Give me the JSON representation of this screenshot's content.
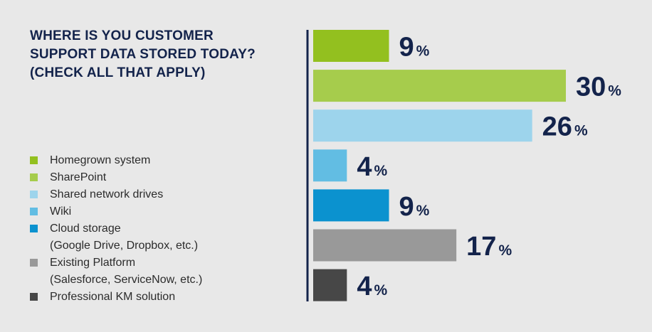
{
  "chart_data": {
    "type": "bar",
    "orientation": "horizontal",
    "title": "WHERE IS YOU CUSTOMER SUPPORT DATA STORED TODAY? (CHECK ALL THAT APPLY)",
    "categories": [
      "Homegrown system",
      "SharePoint",
      "Shared network drives",
      "Wiki",
      "Cloud storage (Google Drive, Dropbox, etc.)",
      "Existing Platform (Salesforce, ServiceNow, etc.)",
      "Professional KM solution"
    ],
    "values": [
      9,
      30,
      26,
      4,
      9,
      17,
      4
    ],
    "value_suffix": "%",
    "colors": [
      "#93c01f",
      "#a6cc4c",
      "#9dd4ec",
      "#62bde3",
      "#0b92cf",
      "#999999",
      "#474747"
    ],
    "xlim": [
      0,
      30
    ],
    "grid": false,
    "legend_placement": "left"
  },
  "legend": [
    {
      "lines": [
        "Homegrown system"
      ],
      "color": "#93c01f"
    },
    {
      "lines": [
        "SharePoint"
      ],
      "color": "#a6cc4c"
    },
    {
      "lines": [
        "Shared network drives"
      ],
      "color": "#9dd4ec"
    },
    {
      "lines": [
        "Wiki"
      ],
      "color": "#62bde3"
    },
    {
      "lines": [
        "Cloud storage",
        "(Google Drive, Dropbox, etc.)"
      ],
      "color": "#0b92cf"
    },
    {
      "lines": [
        "Existing Platform",
        "(Salesforce, ServiceNow, etc.)"
      ],
      "color": "#999999"
    },
    {
      "lines": [
        "Professional KM solution"
      ],
      "color": "#474747"
    }
  ],
  "title_lines": [
    "WHERE IS YOU CUSTOMER",
    "SUPPORT DATA STORED TODAY?",
    "(CHECK ALL THAT APPLY)"
  ],
  "axis_color": "#13234b",
  "value_color": "#13234b"
}
